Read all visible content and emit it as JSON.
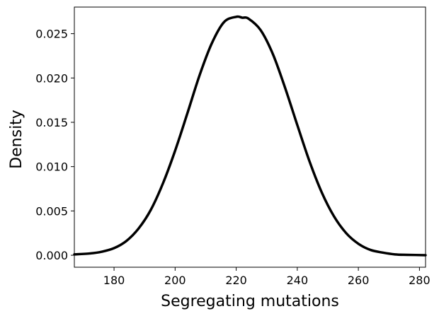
{
  "chart_data": {
    "type": "line",
    "title": "",
    "xlabel": "Segregating mutations",
    "ylabel": "Density",
    "xlim": [
      167,
      282
    ],
    "ylim": [
      -0.00135,
      0.028
    ],
    "xticks": [
      180,
      200,
      220,
      240,
      260,
      280
    ],
    "xtick_labels": [
      "180",
      "200",
      "220",
      "240",
      "260",
      "280"
    ],
    "yticks": [
      0.0,
      0.005,
      0.01,
      0.015,
      0.02,
      0.025
    ],
    "ytick_labels": [
      "0.000",
      "0.005",
      "0.010",
      "0.015",
      "0.020",
      "0.025"
    ],
    "grid": false,
    "legend": "none",
    "series": [
      {
        "color": "#000000",
        "x": [
          167,
          172,
          176,
          180,
          184,
          188,
          192,
          196,
          200,
          204,
          208,
          212,
          216,
          220,
          222,
          224,
          228,
          232,
          236,
          240,
          244,
          248,
          252,
          256,
          260,
          264,
          268,
          272,
          276,
          282
        ],
        "y": [
          0.0001,
          0.0002,
          0.0004,
          0.0008,
          0.0016,
          0.003,
          0.0051,
          0.0081,
          0.0118,
          0.016,
          0.0203,
          0.0239,
          0.0263,
          0.0269,
          0.0268,
          0.0267,
          0.0254,
          0.0227,
          0.0189,
          0.0147,
          0.0106,
          0.0071,
          0.0044,
          0.0025,
          0.0013,
          0.0006,
          0.0003,
          0.0001,
          5e-05,
          1e-05
        ]
      }
    ]
  }
}
